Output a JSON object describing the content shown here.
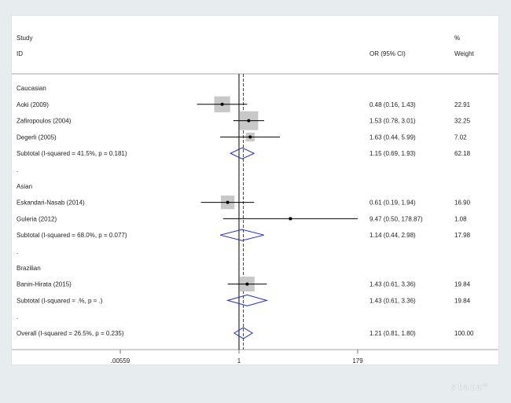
{
  "header": {
    "study_line1": "Study",
    "study_line2": "ID",
    "or_label": "OR (95% CI)",
    "weight_line1": "%",
    "weight_line2": "Weight"
  },
  "logo": {
    "text": "stata™"
  },
  "chart_data": {
    "type": "forest",
    "x_scale": "log",
    "xlim": [
      0.00559,
      179
    ],
    "xticks": [
      0.00559,
      1,
      179
    ],
    "xtick_labels": [
      ".00559",
      "1",
      "179"
    ],
    "null_line": 1,
    "overall_line": 1.21,
    "colors": {
      "box": "#c8c8c8",
      "line": "#000000",
      "diamond": "#1c2fbf",
      "overall_line": "#8b1f2f"
    },
    "rows": [
      {
        "kind": "group",
        "label": "Caucasian"
      },
      {
        "kind": "study",
        "label": "Aoki  (2009)",
        "or": 0.48,
        "lo": 0.16,
        "hi": 1.43,
        "ci_text": "0.48 (0.16, 1.43)",
        "weight": 22.91,
        "weight_text": "22.91"
      },
      {
        "kind": "study",
        "label": "Zafiropoulos (2004)",
        "or": 1.53,
        "lo": 0.78,
        "hi": 3.01,
        "ci_text": "1.53 (0.78, 3.01)",
        "weight": 32.25,
        "weight_text": "32.25"
      },
      {
        "kind": "study",
        "label": "Degerli (2005)",
        "or": 1.63,
        "lo": 0.44,
        "hi": 5.99,
        "ci_text": "1.63 (0.44, 5.99)",
        "weight": 7.02,
        "weight_text": "7.02"
      },
      {
        "kind": "subtotal",
        "label": "Subtotal  (I-squared = 41.5%, p = 0.181)",
        "or": 1.15,
        "lo": 0.69,
        "hi": 1.93,
        "ci_text": "1.15 (0.69, 1.93)",
        "weight": 62.18,
        "weight_text": "62.18"
      },
      {
        "kind": "spacer",
        "label": "."
      },
      {
        "kind": "group",
        "label": "Asian"
      },
      {
        "kind": "study",
        "label": "Eskandari-Nasab (2014)",
        "or": 0.61,
        "lo": 0.19,
        "hi": 1.94,
        "ci_text": "0.61 (0.19, 1.94)",
        "weight": 16.9,
        "weight_text": "16.90"
      },
      {
        "kind": "study",
        "label": "Guleria (2012)",
        "or": 9.47,
        "lo": 0.5,
        "hi": 178.87,
        "ci_text": "9.47 (0.50, 178.87)",
        "weight": 1.08,
        "weight_text": "1.08"
      },
      {
        "kind": "subtotal",
        "label": "Subtotal  (I-squared = 68.0%, p = 0.077)",
        "or": 1.14,
        "lo": 0.44,
        "hi": 2.98,
        "ci_text": "1.14 (0.44, 2.98)",
        "weight": 17.98,
        "weight_text": "17.98"
      },
      {
        "kind": "spacer",
        "label": "."
      },
      {
        "kind": "group",
        "label": "Brazilian"
      },
      {
        "kind": "study",
        "label": "Banin-Hirata (2015)",
        "or": 1.43,
        "lo": 0.61,
        "hi": 3.36,
        "ci_text": "1.43 (0.61, 3.36)",
        "weight": 19.84,
        "weight_text": "19.84"
      },
      {
        "kind": "subtotal",
        "label": "Subtotal  (I-squared = .%, p = .)",
        "or": 1.43,
        "lo": 0.61,
        "hi": 3.36,
        "ci_text": "1.43 (0.61, 3.36)",
        "weight": 19.84,
        "weight_text": "19.84"
      },
      {
        "kind": "spacer",
        "label": "."
      },
      {
        "kind": "overall",
        "label": "Overall  (I-squared = 26.5%, p = 0.235)",
        "or": 1.21,
        "lo": 0.81,
        "hi": 1.8,
        "ci_text": "1.21 (0.81, 1.80)",
        "weight": 100.0,
        "weight_text": "100.00"
      }
    ]
  }
}
